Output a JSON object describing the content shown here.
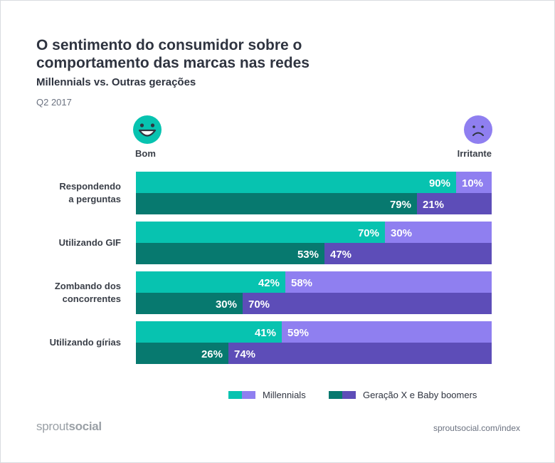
{
  "title_lines": [
    "O sentimento do consumidor sobre o",
    "comportamento das marcas nas redes"
  ],
  "subtitle": "Millennials vs. Outras gerações",
  "period": "Q2 2017",
  "good_label": "Bom",
  "bad_label": "Irritante",
  "good_icon": "smiling-face-icon",
  "bad_icon": "frowning-face-icon",
  "colors": {
    "millennials_good": "#07c3b0",
    "millennials_bad": "#8f7ff0",
    "genx_good": "#07796f",
    "genx_bad": "#5d4db8"
  },
  "chart_data": {
    "type": "bar",
    "orientation": "horizontal",
    "stacked": true,
    "percent_scale": [
      0,
      100
    ],
    "categories": [
      {
        "lines": [
          "Respondendo",
          "a perguntas"
        ]
      },
      {
        "lines": [
          "Utilizando GIF"
        ]
      },
      {
        "lines": [
          "Zombando dos",
          "concorrentes"
        ]
      },
      {
        "lines": [
          "Utilizando gírias"
        ]
      }
    ],
    "series": [
      {
        "name": "Millennials",
        "good": [
          90,
          70,
          42,
          41
        ],
        "bad": [
          10,
          30,
          58,
          59
        ]
      },
      {
        "name": "Geração X e Baby boomers",
        "good": [
          79,
          53,
          30,
          26
        ],
        "bad": [
          21,
          47,
          70,
          74
        ]
      }
    ],
    "value_suffix": "%",
    "legend_position": "bottom-right"
  },
  "footer": {
    "brand_light": "sprout",
    "brand_bold": "social",
    "url": "sproutsocial.com/index"
  }
}
